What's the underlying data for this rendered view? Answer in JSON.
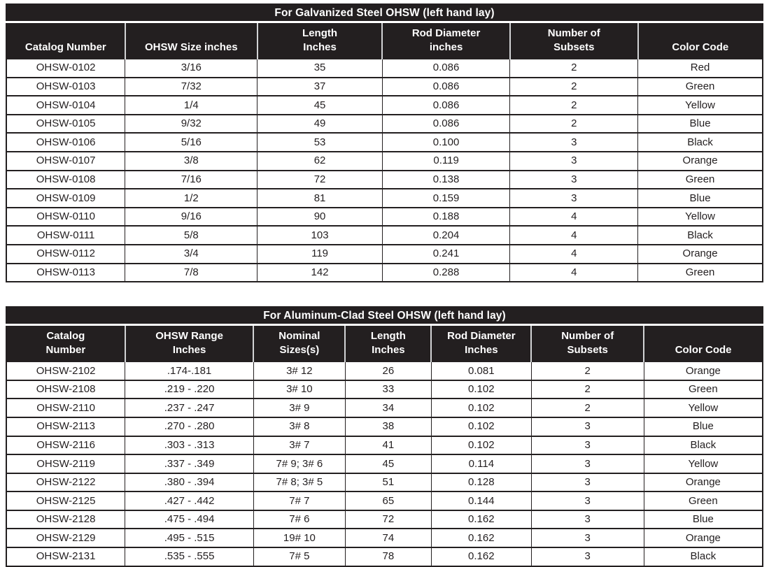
{
  "colors": {
    "header_bg": "#231f20",
    "header_text": "#ffffff",
    "body_text": "#231f20",
    "grid_line": "#231f20",
    "header_divider": "#d2d3d5",
    "page_bg": "#ffffff"
  },
  "tables": [
    {
      "title": "For Galvanized Steel OHSW (left hand lay)",
      "columns": [
        "Catalog Number",
        "OHSW Size inches",
        "Length\nInches",
        "Rod Diameter\ninches",
        "Number of\nSubsets",
        "Color Code"
      ],
      "rows": [
        [
          "OHSW-0102",
          "3/16",
          "35",
          "0.086",
          "2",
          "Red"
        ],
        [
          "OHSW-0103",
          "7/32",
          "37",
          "0.086",
          "2",
          "Green"
        ],
        [
          "OHSW-0104",
          "1/4",
          "45",
          "0.086",
          "2",
          "Yellow"
        ],
        [
          "OHSW-0105",
          "9/32",
          "49",
          "0.086",
          "2",
          "Blue"
        ],
        [
          "OHSW-0106",
          "5/16",
          "53",
          "0.100",
          "3",
          "Black"
        ],
        [
          "OHSW-0107",
          "3/8",
          "62",
          "0.119",
          "3",
          "Orange"
        ],
        [
          "OHSW-0108",
          "7/16",
          "72",
          "0.138",
          "3",
          "Green"
        ],
        [
          "OHSW-0109",
          "1/2",
          "81",
          "0.159",
          "3",
          "Blue"
        ],
        [
          "OHSW-0110",
          "9/16",
          "90",
          "0.188",
          "4",
          "Yellow"
        ],
        [
          "OHSW-0111",
          "5/8",
          "103",
          "0.204",
          "4",
          "Black"
        ],
        [
          "OHSW-0112",
          "3/4",
          "119",
          "0.241",
          "4",
          "Orange"
        ],
        [
          "OHSW-0113",
          "7/8",
          "142",
          "0.288",
          "4",
          "Green"
        ]
      ]
    },
    {
      "title": "For Aluminum-Clad Steel OHSW (left hand lay)",
      "columns": [
        "Catalog\nNumber",
        "OHSW Range\nInches",
        "Nominal\nSizes(s)",
        "Length\nInches",
        "Rod Diameter\nInches",
        "Number of\nSubsets",
        "Color Code"
      ],
      "rows": [
        [
          "OHSW-2102",
          ".174-.181",
          "3# 12",
          "26",
          "0.081",
          "2",
          "Orange"
        ],
        [
          "OHSW-2108",
          ".219 - .220",
          "3# 10",
          "33",
          "0.102",
          "2",
          "Green"
        ],
        [
          "OHSW-2110",
          ".237 - .247",
          "3# 9",
          "34",
          "0.102",
          "2",
          "Yellow"
        ],
        [
          "OHSW-2113",
          ".270 - .280",
          "3# 8",
          "38",
          "0.102",
          "3",
          "Blue"
        ],
        [
          "OHSW-2116",
          ".303 - .313",
          "3# 7",
          "41",
          "0.102",
          "3",
          "Black"
        ],
        [
          "OHSW-2119",
          ".337 - .349",
          "7# 9; 3# 6",
          "45",
          "0.114",
          "3",
          "Yellow"
        ],
        [
          "OHSW-2122",
          ".380 - .394",
          "7# 8; 3# 5",
          "51",
          "0.128",
          "3",
          "Orange"
        ],
        [
          "OHSW-2125",
          ".427 - .442",
          "7# 7",
          "65",
          "0.144",
          "3",
          "Green"
        ],
        [
          "OHSW-2128",
          ".475 - .494",
          "7# 6",
          "72",
          "0.162",
          "3",
          "Blue"
        ],
        [
          "OHSW-2129",
          ".495 - .515",
          "19# 10",
          "74",
          "0.162",
          "3",
          "Orange"
        ],
        [
          "OHSW-2131",
          ".535 - .555",
          "7# 5",
          "78",
          "0.162",
          "3",
          "Black"
        ]
      ]
    }
  ]
}
